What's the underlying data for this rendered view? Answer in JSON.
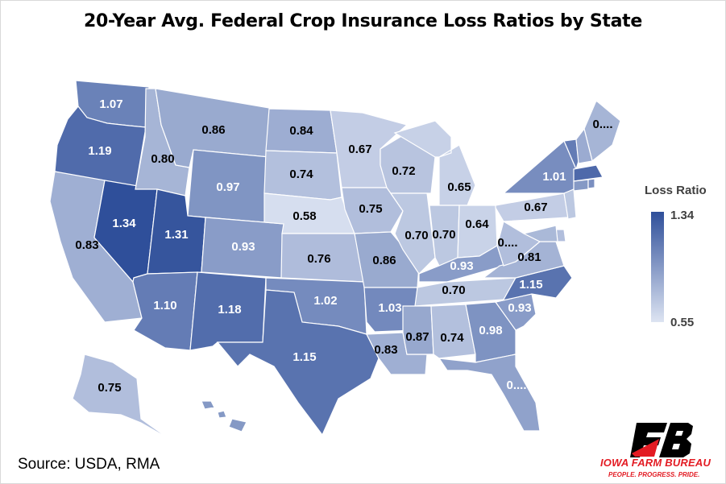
{
  "title": "20-Year Avg. Federal Crop Insurance Loss Ratios by State",
  "source": "Source: USDA, RMA",
  "legend": {
    "title": "Loss Ratio",
    "max_label": "1.34",
    "min_label": "0.55",
    "min": 0.55,
    "max": 1.34,
    "color_low": "#dde4f2",
    "color_high": "#2f4f9a"
  },
  "logo": {
    "name": "IOWA FARM BUREAU",
    "tagline": "PEOPLE. PROGRESS. PRIDE.",
    "color": "#e31b23"
  },
  "states": [
    {
      "id": "WA",
      "value": 1.07,
      "label": "1.07"
    },
    {
      "id": "OR",
      "value": 1.19,
      "label": "1.19"
    },
    {
      "id": "CA",
      "value": 0.83,
      "label": "0.83"
    },
    {
      "id": "NV",
      "value": 1.34,
      "label": "1.34"
    },
    {
      "id": "ID",
      "value": 0.8,
      "label": "0.80"
    },
    {
      "id": "MT",
      "value": 0.86,
      "label": "0.86"
    },
    {
      "id": "WY",
      "value": 0.97,
      "label": "0.97"
    },
    {
      "id": "UT",
      "value": 1.31,
      "label": "1.31"
    },
    {
      "id": "AZ",
      "value": 1.1,
      "label": "1.10"
    },
    {
      "id": "CO",
      "value": 0.93,
      "label": "0.93"
    },
    {
      "id": "NM",
      "value": 1.18,
      "label": "1.18"
    },
    {
      "id": "ND",
      "value": 0.84,
      "label": "0.84"
    },
    {
      "id": "SD",
      "value": 0.74,
      "label": "0.74"
    },
    {
      "id": "NE",
      "value": 0.58,
      "label": "0.58"
    },
    {
      "id": "KS",
      "value": 0.76,
      "label": "0.76"
    },
    {
      "id": "OK",
      "value": 1.02,
      "label": "1.02"
    },
    {
      "id": "TX",
      "value": 1.15,
      "label": "1.15"
    },
    {
      "id": "MN",
      "value": 0.67,
      "label": "0.67"
    },
    {
      "id": "IA",
      "value": 0.75,
      "label": "0.75"
    },
    {
      "id": "MO",
      "value": 0.86,
      "label": "0.86"
    },
    {
      "id": "AR",
      "value": 1.03,
      "label": "1.03"
    },
    {
      "id": "LA",
      "value": 0.83,
      "label": "0.83"
    },
    {
      "id": "WI",
      "value": 0.72,
      "label": "0.72"
    },
    {
      "id": "IL",
      "value": 0.7,
      "label": "0.70"
    },
    {
      "id": "MI",
      "value": 0.65,
      "label": "0.65"
    },
    {
      "id": "IN",
      "value": 0.7,
      "label": "0.70"
    },
    {
      "id": "OH",
      "value": 0.64,
      "label": "0.64"
    },
    {
      "id": "KY",
      "value": 0.93,
      "label": "0.93"
    },
    {
      "id": "TN",
      "value": 0.7,
      "label": "0.70"
    },
    {
      "id": "MS",
      "value": 0.87,
      "label": "0.87"
    },
    {
      "id": "AL",
      "value": 0.74,
      "label": "0.74"
    },
    {
      "id": "GA",
      "value": 0.98,
      "label": "0.98"
    },
    {
      "id": "FL",
      "value": 0.9,
      "label": "0...."
    },
    {
      "id": "SC",
      "value": 0.93,
      "label": "0.93"
    },
    {
      "id": "NC",
      "value": 1.15,
      "label": "1.15"
    },
    {
      "id": "VA",
      "value": 0.81,
      "label": "0.81"
    },
    {
      "id": "WV",
      "value": 0.75,
      "label": "0...."
    },
    {
      "id": "PA",
      "value": 0.67,
      "label": "0.67"
    },
    {
      "id": "NY",
      "value": 1.01,
      "label": "1.01"
    },
    {
      "id": "ME",
      "value": 0.8,
      "label": "0...."
    },
    {
      "id": "VT",
      "value": 1.1,
      "label": ""
    },
    {
      "id": "NH",
      "value": 0.85,
      "label": ""
    },
    {
      "id": "MA",
      "value": 1.2,
      "label": ""
    },
    {
      "id": "CT",
      "value": 0.95,
      "label": ""
    },
    {
      "id": "RI",
      "value": 1.0,
      "label": ""
    },
    {
      "id": "NJ",
      "value": 0.7,
      "label": ""
    },
    {
      "id": "DE",
      "value": 0.75,
      "label": ""
    },
    {
      "id": "MD",
      "value": 0.78,
      "label": ""
    },
    {
      "id": "AK",
      "value": 0.75,
      "label": "0.75"
    },
    {
      "id": "HI",
      "value": 0.95,
      "label": ""
    }
  ]
}
